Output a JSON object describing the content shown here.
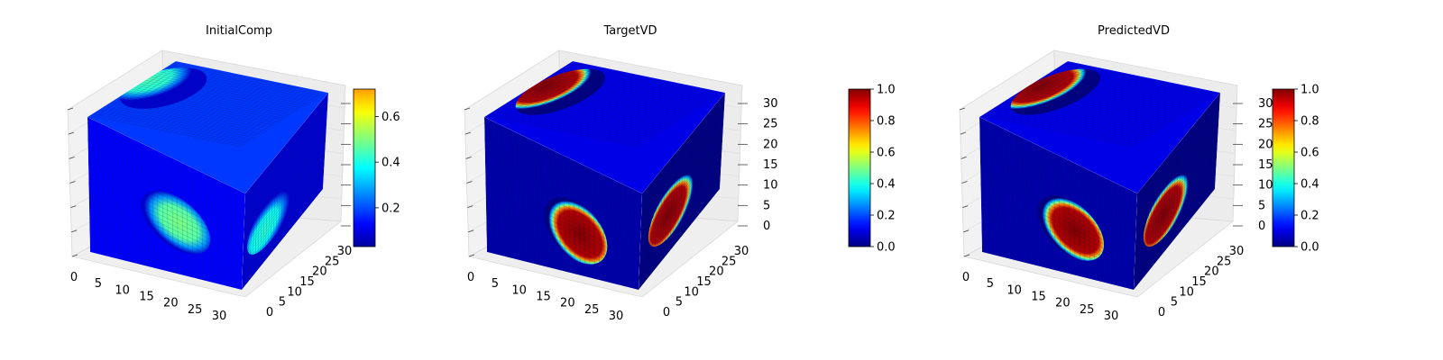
{
  "chart_data": [
    {
      "type": "heatmap",
      "subtype": "3d-voxel-cube",
      "title": "InitialComp",
      "colormap": "jet",
      "x_ticks": [
        "0",
        "5",
        "10",
        "15",
        "20",
        "25",
        "30"
      ],
      "y_ticks": [
        "0",
        "5",
        "10",
        "15",
        "20",
        "25",
        "30"
      ],
      "z_ticks": [],
      "xlim": [
        0,
        32
      ],
      "ylim": [
        0,
        32
      ],
      "zlim": [
        0,
        32
      ],
      "colorbar": {
        "min": 0.03,
        "max": 0.72,
        "ticks": [
          "0.2",
          "0.4",
          "0.6"
        ]
      },
      "features": [
        {
          "face": "front",
          "cx": 0.55,
          "cy": 0.47,
          "rx": 0.22,
          "ry": 0.2,
          "value": 0.5
        },
        {
          "face": "top",
          "cx": 0.15,
          "cy": 0.4,
          "rx": 0.2,
          "ry": 0.35,
          "value": 0.45
        },
        {
          "face": "side",
          "cx": 0.35,
          "cy": 0.6,
          "rx": 0.3,
          "ry": 0.25,
          "value": 0.42
        }
      ],
      "background_value": 0.08
    },
    {
      "type": "heatmap",
      "subtype": "3d-voxel-cube",
      "title": "TargetVD",
      "colormap": "jet",
      "x_ticks": [
        "0",
        "5",
        "10",
        "15",
        "20",
        "25",
        "30"
      ],
      "y_ticks": [
        "0",
        "5",
        "10",
        "15",
        "20",
        "25",
        "30"
      ],
      "z_ticks": [
        "0",
        "5",
        "10",
        "15",
        "20",
        "25",
        "30"
      ],
      "xlim": [
        0,
        32
      ],
      "ylim": [
        0,
        32
      ],
      "zlim": [
        0,
        32
      ],
      "colorbar": {
        "min": 0.0,
        "max": 1.0,
        "ticks": [
          "0.0",
          "0.2",
          "0.4",
          "0.6",
          "0.8",
          "1.0"
        ]
      },
      "features": [
        {
          "face": "front",
          "cx": 0.57,
          "cy": 0.52,
          "rx": 0.2,
          "ry": 0.22,
          "value": 1.0
        },
        {
          "face": "top",
          "cx": 0.18,
          "cy": 0.45,
          "rx": 0.18,
          "ry": 0.4,
          "value": 1.0
        },
        {
          "face": "side",
          "cx": 0.4,
          "cy": 0.55,
          "rx": 0.3,
          "ry": 0.28,
          "value": 1.0
        }
      ],
      "background_value": 0.0
    },
    {
      "type": "heatmap",
      "subtype": "3d-voxel-cube",
      "title": "PredictedVD",
      "colormap": "jet",
      "x_ticks": [
        "0",
        "5",
        "10",
        "15",
        "20",
        "25",
        "30"
      ],
      "y_ticks": [
        "0",
        "5",
        "10",
        "15",
        "20",
        "25",
        "30"
      ],
      "z_ticks": [
        "0",
        "5",
        "10",
        "15",
        "20",
        "25",
        "30"
      ],
      "xlim": [
        0,
        32
      ],
      "ylim": [
        0,
        32
      ],
      "zlim": [
        0,
        32
      ],
      "colorbar": {
        "min": 0.0,
        "max": 1.0,
        "ticks": [
          "0.0",
          "0.2",
          "0.4",
          "0.6",
          "0.8",
          "1.0"
        ]
      },
      "features": [
        {
          "face": "front",
          "cx": 0.57,
          "cy": 0.5,
          "rx": 0.21,
          "ry": 0.21,
          "value": 1.0
        },
        {
          "face": "top",
          "cx": 0.18,
          "cy": 0.45,
          "rx": 0.18,
          "ry": 0.4,
          "value": 1.0
        },
        {
          "face": "side",
          "cx": 0.4,
          "cy": 0.55,
          "rx": 0.3,
          "ry": 0.28,
          "value": 1.0
        }
      ],
      "background_value": 0.0
    }
  ]
}
